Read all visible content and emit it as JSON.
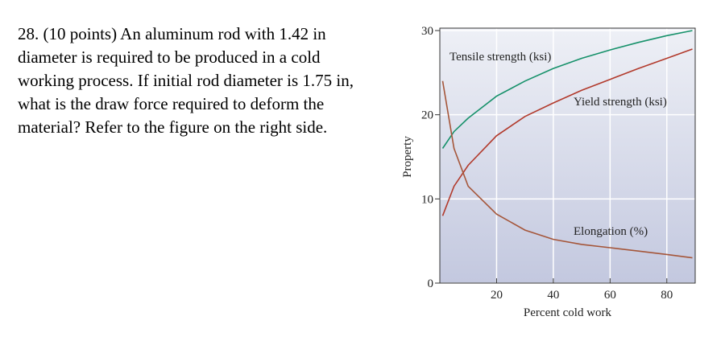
{
  "question": {
    "lines": [
      "28. (10 points) An aluminum rod with 1.42 in",
      "diameter is required to be produced in a cold",
      "working process. If initial rod diameter is 1.75 in,",
      "what is the draw force required to deform the",
      "material? Refer to the figure on the right side."
    ]
  },
  "chart_data": {
    "type": "line",
    "x_label": "Percent cold work",
    "y_label": "Property",
    "x": [
      1,
      5,
      10,
      20,
      30,
      40,
      50,
      60,
      70,
      80,
      89
    ],
    "series": [
      {
        "name": "Tensile strength (ksi)",
        "color": "#16916a",
        "values": [
          16,
          18,
          19.6,
          22.2,
          24,
          25.5,
          26.7,
          27.7,
          28.6,
          29.4,
          30
        ]
      },
      {
        "name": "Yield strength (ksi)",
        "color": "#b23a2c",
        "values": [
          8,
          11.5,
          14,
          17.5,
          19.8,
          21.4,
          22.9,
          24.2,
          25.5,
          26.7,
          27.8
        ]
      },
      {
        "name": "Elongation (%)",
        "color": "#a5563a",
        "values": [
          24,
          16,
          11.5,
          8.2,
          6.3,
          5.2,
          4.6,
          4.2,
          3.8,
          3.4,
          3
        ]
      }
    ],
    "xlim": [
      0,
      90
    ],
    "ylim": [
      0,
      30
    ],
    "xticks": [
      20,
      40,
      60,
      80
    ],
    "yticks": [
      0,
      10,
      20,
      30
    ],
    "grid": true
  }
}
